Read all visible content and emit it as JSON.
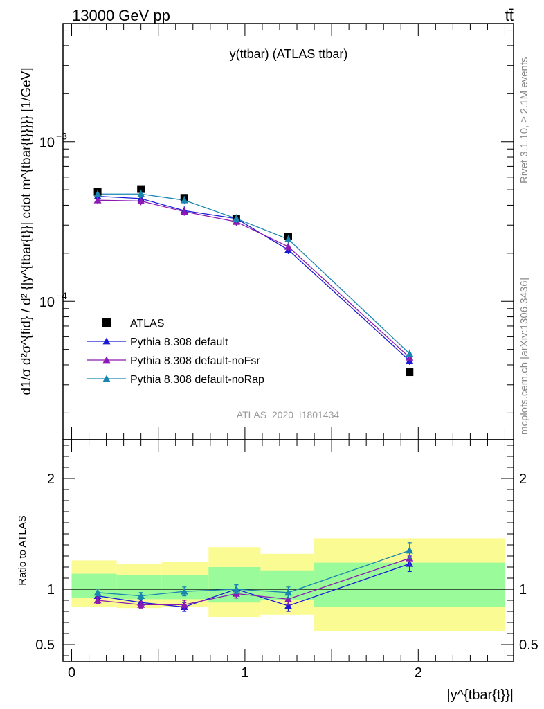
{
  "header": {
    "left_label": "13000 GeV pp",
    "right_label": "tt̄"
  },
  "side_text": {
    "rivet": "Rivet 3.1.10, ≥ 2.1M events",
    "mcplots": "mcplots.cern.ch [arXiv:1306.3436]"
  },
  "chart_data": [
    {
      "type": "scatter",
      "title": "y(ttbar) (ATLAS ttbar)",
      "watermark": "ATLAS_2020_I1801434",
      "xlabel": "|y^{tbar{t}}|",
      "ylabel": "d1/σ d²σ^{fid} / d² {|y^{tbar{t}}| cdot m^{tbar{t}}}}} [1/GeV]",
      "log_y": true,
      "xlim": [
        -0.05,
        2.55
      ],
      "ylim": [
        1.36e-05,
        0.0055
      ],
      "y_tick_labels": [
        "10^{-4}",
        "10^{-3}"
      ],
      "legend_position": "lower-left",
      "x": [
        0.15,
        0.4,
        0.65,
        0.95,
        1.25,
        1.95
      ],
      "series": [
        {
          "name": "ATLAS",
          "color": "#000000",
          "marker": "square",
          "values": [
            0.000485,
            0.000505,
            0.000445,
            0.00033,
            0.000255,
            3.6e-05
          ]
        },
        {
          "name": "Pythia 8.308 default",
          "color": "#1a1ad6",
          "marker": "triangle",
          "values": [
            0.000455,
            0.00044,
            0.00037,
            0.00033,
            0.00021,
            4.25e-05
          ]
        },
        {
          "name": "Pythia 8.308 default-noFsr",
          "color": "#8b19b3",
          "marker": "triangle",
          "values": [
            0.00043,
            0.000425,
            0.000365,
            0.000315,
            0.00022,
            4.45e-05
          ]
        },
        {
          "name": "Pythia 8.308 default-noRap",
          "color": "#1a86b0",
          "marker": "triangle",
          "values": [
            0.00047,
            0.00047,
            0.00043,
            0.00033,
            0.000245,
            4.7e-05
          ]
        }
      ]
    },
    {
      "type": "line",
      "ylabel": "Ratio to ATLAS",
      "xlim": [
        -0.05,
        2.55
      ],
      "ylim": [
        0.35,
        2.35
      ],
      "x_ticks": [
        0,
        1,
        2
      ],
      "y_ticks": [
        0.5,
        1,
        2
      ],
      "reference_line": 1,
      "bands": {
        "edges": [
          0,
          0.26,
          0.52,
          0.79,
          1.09,
          1.4,
          2.5
        ],
        "green_lower": [
          0.92,
          0.91,
          0.91,
          0.88,
          0.9,
          0.84
        ],
        "green_upper": [
          1.14,
          1.13,
          1.13,
          1.2,
          1.17,
          1.24
        ],
        "yellow_lower": [
          0.84,
          0.83,
          0.84,
          0.75,
          0.77,
          0.62
        ],
        "yellow_upper": [
          1.26,
          1.23,
          1.25,
          1.38,
          1.32,
          1.46
        ]
      },
      "x": [
        0.15,
        0.4,
        0.65,
        0.95,
        1.25,
        1.95
      ],
      "series": [
        {
          "name": "Pythia 8.308 default",
          "color": "#1a1ad6",
          "values": [
            0.94,
            0.88,
            0.84,
            1.0,
            0.85,
            1.23
          ],
          "errors": [
            0.03,
            0.03,
            0.04,
            0.04,
            0.05,
            0.07
          ]
        },
        {
          "name": "Pythia 8.308 default-noFsr",
          "color": "#8b19b3",
          "values": [
            0.9,
            0.86,
            0.86,
            0.96,
            0.91,
            1.28
          ],
          "errors": [
            0.03,
            0.03,
            0.04,
            0.04,
            0.05,
            0.07
          ]
        },
        {
          "name": "Pythia 8.308 default-noRap",
          "color": "#1a86b0",
          "values": [
            0.97,
            0.94,
            0.98,
            1.0,
            0.97,
            1.35
          ],
          "errors": [
            0.03,
            0.03,
            0.04,
            0.04,
            0.05,
            0.07
          ]
        }
      ]
    }
  ]
}
